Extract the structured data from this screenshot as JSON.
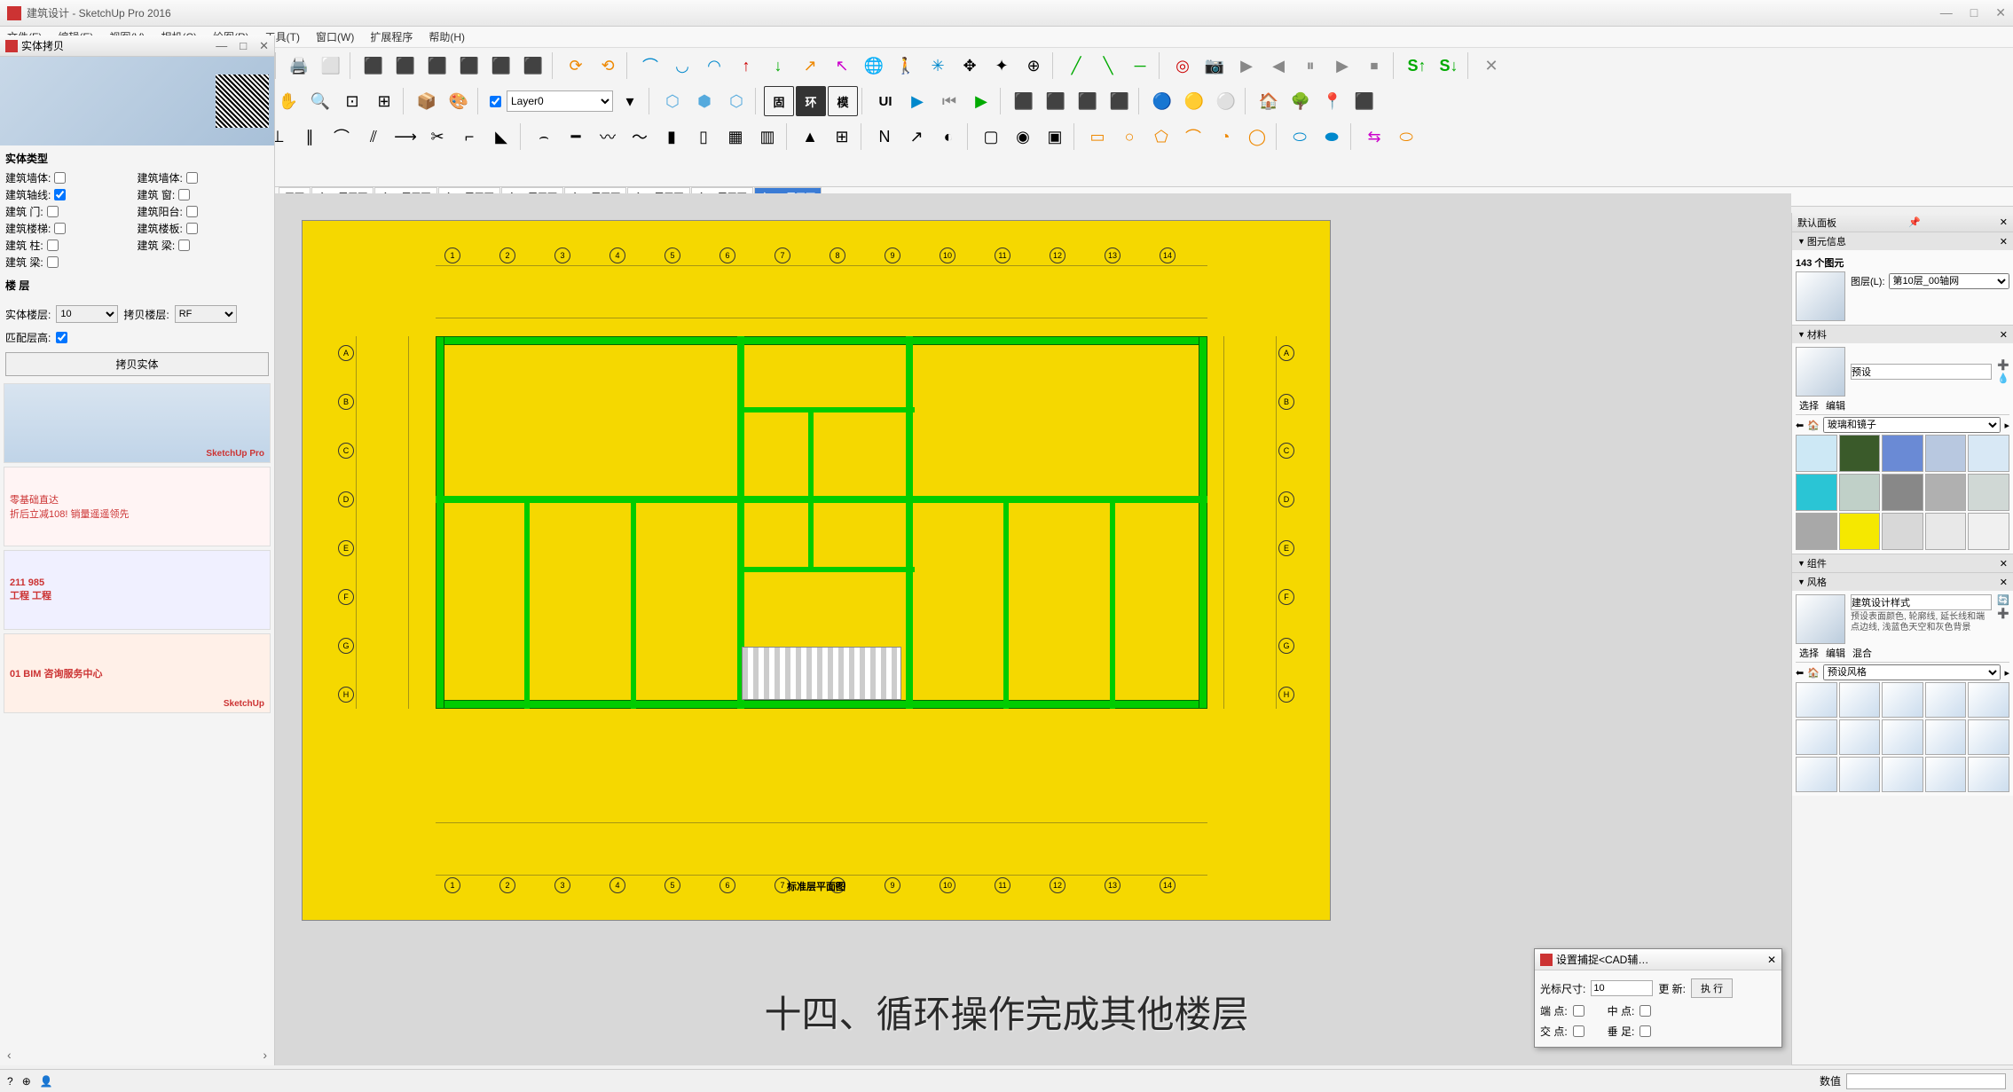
{
  "app": {
    "title": "建筑设计 - SketchUp Pro 2016",
    "window_controls": {
      "min": "—",
      "max": "□",
      "close": "✕"
    }
  },
  "menu": [
    "文件(F)",
    "编辑(E)",
    "视图(V)",
    "相机(C)",
    "绘图(R)",
    "工具(T)",
    "窗口(W)",
    "扩展程序",
    "帮助(H)"
  ],
  "layer_combo": {
    "checked": true,
    "value": "Layer0"
  },
  "scene_tabs": [
    {
      "label": "平面",
      "active": false
    },
    {
      "label": "主_3层平面",
      "active": false
    },
    {
      "label": "主_4层平面",
      "active": false
    },
    {
      "label": "主_5层平面",
      "active": false
    },
    {
      "label": "主_6层平面",
      "active": false
    },
    {
      "label": "主_7层平面",
      "active": false
    },
    {
      "label": "主_8层平面",
      "active": false
    },
    {
      "label": "主_9层平面",
      "active": false
    },
    {
      "label": "主_10层平面",
      "active": true
    }
  ],
  "copy_panel": {
    "title": "实体拷贝",
    "section": "实体类型",
    "left_items": [
      "建筑墙体:",
      "建筑轴线:",
      "建筑 门:",
      "建筑楼梯:",
      "建筑 柱:",
      "建筑 梁:"
    ],
    "right_items": [
      "建筑墙体:",
      "建筑 窗:",
      "建筑阳台:",
      "建筑楼板:",
      "建筑 梁:"
    ],
    "floor_label": "楼 层",
    "src_label": "实体楼层:",
    "src_value": "10",
    "dst_label": "拷贝楼层:",
    "dst_value": "RF",
    "match_label": "匹配层高:",
    "copy_button": "拷贝实体"
  },
  "ads": [
    {
      "text": "",
      "logo": "SketchUp Pro",
      "bg": "#dde8f0"
    },
    {
      "text": "零基础直达\n折后立减108! 销量遥遥领先",
      "logo": "",
      "bg": "#fff0f0"
    },
    {
      "text": "211 985\n工程 工程",
      "logo": "",
      "bg": "#e8e8f8"
    },
    {
      "text": "01 BIM 咨询服务中心",
      "logo": "SketchUp",
      "bg": "#ffe8d8"
    }
  ],
  "subtitle": "十四、循环操作完成其他楼层",
  "tray": {
    "header": "默认面板",
    "entity_info": {
      "title": "图元信息",
      "count": "143 个图元",
      "layer_label": "图层(L):",
      "layer_value": "第10层_00轴网"
    },
    "materials": {
      "title": "材料",
      "name": "预设",
      "tabs": [
        "选择",
        "编辑"
      ],
      "library": "玻璃和镜子",
      "swatches": [
        "#cde8f5",
        "#3a5a2a",
        "#6a8ad5",
        "#b8c8e0",
        "#d8e8f5",
        "#2ac5d5",
        "#c0d0c8",
        "#888888",
        "#b0b0b0",
        "#d0d8d5",
        "#a8a8a8",
        "#f5e800",
        "#d8d8d8",
        "#e8e8e8",
        "#f0f0f0"
      ]
    },
    "components": {
      "title": "组件"
    },
    "styles": {
      "title": "风格",
      "name": "建筑设计样式",
      "desc": "预设表面颜色, 轮廓线, 延长线和端点边线, 浅蓝色天空和灰色背景",
      "tabs": [
        "选择",
        "编辑",
        "混合"
      ],
      "library": "预设风格"
    }
  },
  "float_dialog": {
    "title": "设置捕捉<CAD辅…",
    "cursor_label": "光标尺寸:",
    "cursor_value": "10",
    "update": "更 新:",
    "execute": "执 行",
    "row2": {
      "end_label": "端 点:",
      "mid_label": "中 点:"
    },
    "row3": {
      "cross_label": "交 点:",
      "perp_label": "垂 足:"
    }
  },
  "statusbar": {
    "measure_label": "数值"
  },
  "floorplan": {
    "bg": "#f5d800",
    "wall_color": "#00cc00",
    "grid_letters_top": [
      "1",
      "2",
      "3",
      "4",
      "5",
      "6",
      "7",
      "8",
      "9",
      "10",
      "11",
      "12",
      "13",
      "14"
    ],
    "grid_letters_left": [
      "A",
      "B",
      "C",
      "D",
      "E",
      "F",
      "G",
      "H"
    ]
  }
}
